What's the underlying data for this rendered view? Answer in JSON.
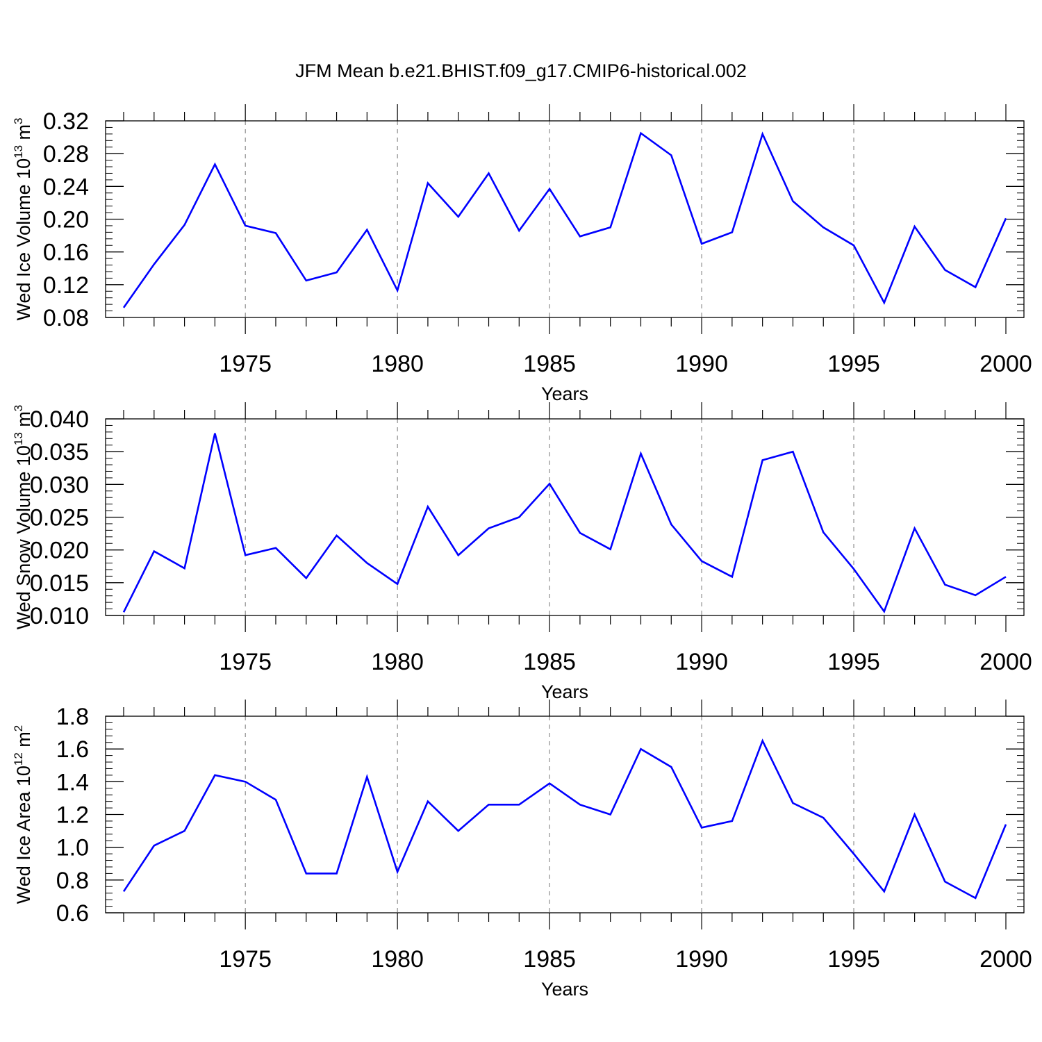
{
  "title": "JFM Mean b.e21.BHIST.f09_g17.CMIP6-historical.002",
  "colors": {
    "line": "#0000ff",
    "axes": "#000000",
    "grid": "#777777"
  },
  "chart_data": [
    {
      "type": "line",
      "xlabel": "Years",
      "ylabel": {
        "text": "Wed Ice Volume 10",
        "exp": "13",
        "unit": " m",
        "unit_exp": "3"
      },
      "xlim": [
        1971,
        2000
      ],
      "ylim": [
        0.08,
        0.32
      ],
      "xticks": [
        1975,
        1980,
        1985,
        1990,
        1995,
        2000
      ],
      "xtick_labels": [
        "1975",
        "1980",
        "1985",
        "1990",
        "1995",
        "2000"
      ],
      "yticks": [
        0.08,
        0.12,
        0.16,
        0.2,
        0.24,
        0.28,
        0.32
      ],
      "ytick_labels": [
        "0.08",
        "0.12",
        "0.16",
        "0.20",
        "0.24",
        "0.28",
        "0.32"
      ],
      "grid": "vertical dashed at major x ticks",
      "x": [
        1971,
        1972,
        1973,
        1974,
        1975,
        1976,
        1977,
        1978,
        1979,
        1980,
        1981,
        1982,
        1983,
        1984,
        1985,
        1986,
        1987,
        1988,
        1989,
        1990,
        1991,
        1992,
        1993,
        1994,
        1995,
        1996,
        1997,
        1998,
        1999,
        2000
      ],
      "series": [
        {
          "values": [
            0.092,
            0.145,
            0.193,
            0.267,
            0.192,
            0.183,
            0.125,
            0.135,
            0.187,
            0.113,
            0.244,
            0.203,
            0.256,
            0.186,
            0.237,
            0.179,
            0.19,
            0.305,
            0.278,
            0.17,
            0.184,
            0.304,
            0.222,
            0.19,
            0.168,
            0.098,
            0.191,
            0.138,
            0.117,
            0.201
          ]
        }
      ]
    },
    {
      "type": "line",
      "xlabel": "Years",
      "ylabel": {
        "text": "Wed Snow Volume 10",
        "exp": "13",
        "unit": " m",
        "unit_exp": "3"
      },
      "xlim": [
        1971,
        2000
      ],
      "ylim": [
        0.01,
        0.04
      ],
      "xticks": [
        1975,
        1980,
        1985,
        1990,
        1995,
        2000
      ],
      "xtick_labels": [
        "1975",
        "1980",
        "1985",
        "1990",
        "1995",
        "2000"
      ],
      "yticks": [
        0.01,
        0.015,
        0.02,
        0.025,
        0.03,
        0.035,
        0.04
      ],
      "ytick_labels": [
        "0.010",
        "0.015",
        "0.020",
        "0.025",
        "0.030",
        "0.035",
        "0.040"
      ],
      "grid": "vertical dashed at major x ticks",
      "x": [
        1971,
        1972,
        1973,
        1974,
        1975,
        1976,
        1977,
        1978,
        1979,
        1980,
        1981,
        1982,
        1983,
        1984,
        1985,
        1986,
        1987,
        1988,
        1989,
        1990,
        1991,
        1992,
        1993,
        1994,
        1995,
        1996,
        1997,
        1998,
        1999,
        2000
      ],
      "series": [
        {
          "values": [
            0.0105,
            0.0198,
            0.0172,
            0.0378,
            0.0192,
            0.0203,
            0.0157,
            0.0222,
            0.018,
            0.0148,
            0.0266,
            0.0192,
            0.0233,
            0.025,
            0.0301,
            0.0226,
            0.0201,
            0.0347,
            0.0239,
            0.0183,
            0.0159,
            0.0337,
            0.035,
            0.0227,
            0.0171,
            0.0106,
            0.0233,
            0.0147,
            0.0131,
            0.0159
          ]
        }
      ]
    },
    {
      "type": "line",
      "xlabel": "Years",
      "ylabel": {
        "text": "Wed Ice Area 10",
        "exp": "12",
        "unit": " m",
        "unit_exp": "2"
      },
      "xlim": [
        1971,
        2000
      ],
      "ylim": [
        0.6,
        1.8
      ],
      "xticks": [
        1975,
        1980,
        1985,
        1990,
        1995,
        2000
      ],
      "xtick_labels": [
        "1975",
        "1980",
        "1985",
        "1990",
        "1995",
        "2000"
      ],
      "yticks": [
        0.6,
        0.8,
        1.0,
        1.2,
        1.4,
        1.6,
        1.8
      ],
      "ytick_labels": [
        "0.6",
        "0.8",
        "1.0",
        "1.2",
        "1.4",
        "1.6",
        "1.8"
      ],
      "grid": "vertical dashed at major x ticks",
      "x": [
        1971,
        1972,
        1973,
        1974,
        1975,
        1976,
        1977,
        1978,
        1979,
        1980,
        1981,
        1982,
        1983,
        1984,
        1985,
        1986,
        1987,
        1988,
        1989,
        1990,
        1991,
        1992,
        1993,
        1994,
        1995,
        1996,
        1997,
        1998,
        1999,
        2000
      ],
      "series": [
        {
          "values": [
            0.73,
            1.01,
            1.1,
            1.44,
            1.4,
            1.29,
            0.84,
            0.84,
            1.43,
            0.85,
            1.28,
            1.1,
            1.26,
            1.26,
            1.39,
            1.26,
            1.2,
            1.6,
            1.49,
            1.12,
            1.16,
            1.65,
            1.27,
            1.18,
            0.96,
            0.73,
            1.2,
            0.79,
            0.69,
            1.14
          ]
        }
      ]
    }
  ]
}
